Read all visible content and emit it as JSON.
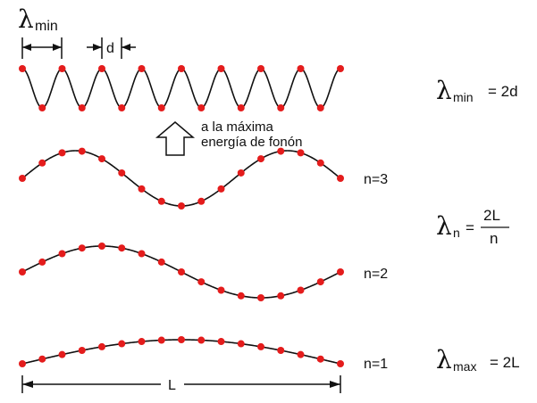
{
  "colors": {
    "point": "#e41c1c",
    "curve": "#111111",
    "ink": "#111111"
  },
  "lambda_symbol": "λ",
  "top_left_label": {
    "symbol": "λ",
    "sub": "min"
  },
  "d_label": "d",
  "arrow_text": [
    "a la máxima",
    "energía de fonón"
  ],
  "mode_labels": {
    "n3": "n=3",
    "n2": "n=2",
    "n1": "n=1"
  },
  "length_label": "L",
  "formulas": {
    "min": {
      "sub": "min",
      "rhs": "= 2d"
    },
    "n": {
      "sub": "n",
      "eq": "=",
      "num": "2L",
      "den": "n"
    },
    "max": {
      "sub": "max",
      "rhs": "= 2L"
    }
  },
  "waves": [
    {
      "name": "wave-min",
      "atoms": 17,
      "half_wavelengths": 16,
      "phase": "cos"
    },
    {
      "name": "wave-n3",
      "atoms": 17,
      "half_wavelengths": 3,
      "phase": "sin"
    },
    {
      "name": "wave-n2",
      "atoms": 17,
      "half_wavelengths": 2,
      "phase": "sin"
    },
    {
      "name": "wave-n1",
      "atoms": 17,
      "half_wavelengths": 1,
      "phase": "sin"
    }
  ]
}
